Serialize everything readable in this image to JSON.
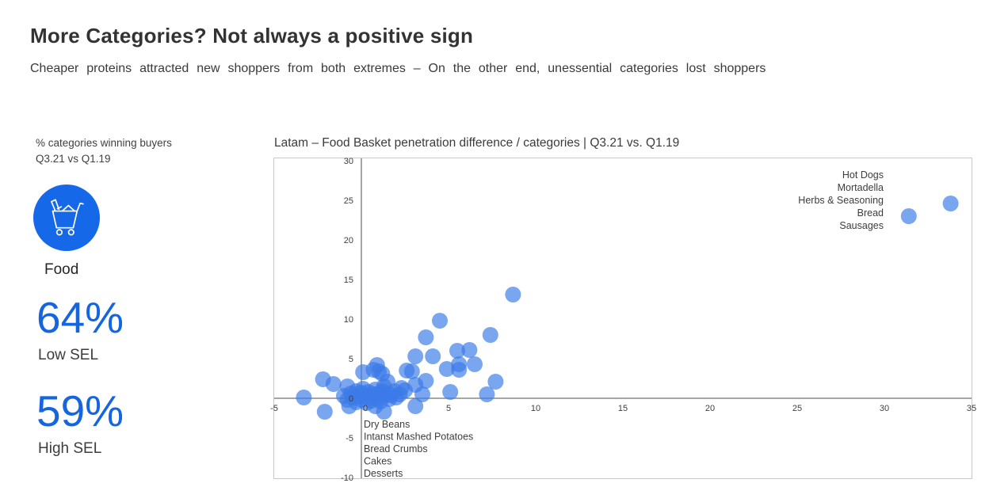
{
  "slide": {
    "title": "More Categories? Not always a positive sign",
    "subtitle": "Cheaper proteins attracted new shoppers from both extremes – On the other end, unessential categories lost shoppers"
  },
  "left_panel": {
    "caption_line1": "% categories winning buyers",
    "caption_line2": "Q3.21 vs Q1.19",
    "icon": "shopping-cart-icon",
    "icon_bg_color": "#1568e8",
    "category_label": "Food",
    "accent_color": "#1565e0",
    "stats": [
      {
        "value": "64%",
        "label": "Low SEL"
      },
      {
        "value": "59%",
        "label": "High SEL"
      }
    ]
  },
  "chart_data": {
    "type": "scatter",
    "title": "Latam – Food Basket penetration difference / categories | Q3.21 vs. Q1.19",
    "xlabel": "",
    "ylabel": "",
    "xlim": [
      -5,
      35
    ],
    "ylim": [
      -10,
      30
    ],
    "x_ticks": [
      -5,
      0,
      5,
      10,
      15,
      20,
      25,
      30,
      35
    ],
    "y_ticks": [
      30,
      25,
      20,
      15,
      10,
      5,
      0,
      -5,
      -10
    ],
    "grid": false,
    "legend": "none",
    "dot_color": "#3b7ae8",
    "dot_opacity": 0.68,
    "dot_radius": 10,
    "border_color": "#c9c9c9",
    "axis_color": "#4d4d4d",
    "points": [
      [
        -3.3,
        0.1
      ],
      [
        -2.2,
        2.4
      ],
      [
        -2.1,
        -1.7
      ],
      [
        -1.6,
        1.8
      ],
      [
        -0.8,
        1.5
      ],
      [
        -0.7,
        -1.0
      ],
      [
        0.1,
        3.3
      ],
      [
        0.7,
        3.6
      ],
      [
        0.9,
        4.2
      ],
      [
        1.0,
        3.4
      ],
      [
        1.2,
        3.1
      ],
      [
        1.3,
        1.5
      ],
      [
        1.5,
        2.1
      ],
      [
        0.8,
        -1.0
      ],
      [
        1.3,
        -1.7
      ],
      [
        2.3,
        1.3
      ],
      [
        2.5,
        1.0
      ],
      [
        2.6,
        3.5
      ],
      [
        2.9,
        3.4
      ],
      [
        3.1,
        5.3
      ],
      [
        3.1,
        1.7
      ],
      [
        3.1,
        -1.0
      ],
      [
        3.5,
        0.5
      ],
      [
        3.7,
        7.7
      ],
      [
        3.7,
        2.2
      ],
      [
        4.1,
        5.3
      ],
      [
        4.5,
        9.8
      ],
      [
        4.9,
        3.7
      ],
      [
        5.1,
        0.8
      ],
      [
        5.5,
        6.0
      ],
      [
        5.6,
        4.3
      ],
      [
        5.6,
        3.6
      ],
      [
        6.2,
        6.1
      ],
      [
        6.5,
        4.3
      ],
      [
        7.2,
        0.5
      ],
      [
        7.4,
        8.0
      ],
      [
        7.7,
        2.1
      ],
      [
        8.7,
        13.1
      ],
      [
        31.4,
        23.0
      ],
      [
        33.8,
        24.6
      ],
      [
        -1.0,
        0.3
      ],
      [
        -0.8,
        -0.2
      ],
      [
        -0.6,
        0.6
      ],
      [
        -0.5,
        0.1
      ],
      [
        -0.3,
        -0.5
      ],
      [
        -0.3,
        0.9
      ],
      [
        -0.1,
        0.2
      ],
      [
        0.0,
        -0.2
      ],
      [
        0.0,
        0.7
      ],
      [
        0.1,
        1.2
      ],
      [
        0.2,
        0.3
      ],
      [
        0.3,
        -0.6
      ],
      [
        0.4,
        0.8
      ],
      [
        0.5,
        0.1
      ],
      [
        0.6,
        -0.3
      ],
      [
        0.7,
        0.5
      ],
      [
        0.8,
        1.1
      ],
      [
        0.9,
        0.0
      ],
      [
        1.0,
        0.6
      ],
      [
        1.1,
        -0.4
      ],
      [
        1.2,
        0.9
      ],
      [
        1.3,
        0.3
      ],
      [
        1.5,
        0.6
      ],
      [
        1.6,
        -0.1
      ],
      [
        1.7,
        0.4
      ],
      [
        1.9,
        0.9
      ],
      [
        2.0,
        0.1
      ],
      [
        2.2,
        0.5
      ]
    ],
    "annotations": {
      "top_right": {
        "align": "right",
        "lines": [
          "Hot Dogs",
          "Mortadella",
          "Herbs & Seasoning",
          "Bread",
          "Sausages"
        ]
      },
      "bottom": {
        "align": "left",
        "lines": [
          "Dry Beans",
          "Intanst Mashed Potatoes",
          "Bread Crumbs",
          "Cakes",
          "Desserts"
        ]
      }
    }
  }
}
